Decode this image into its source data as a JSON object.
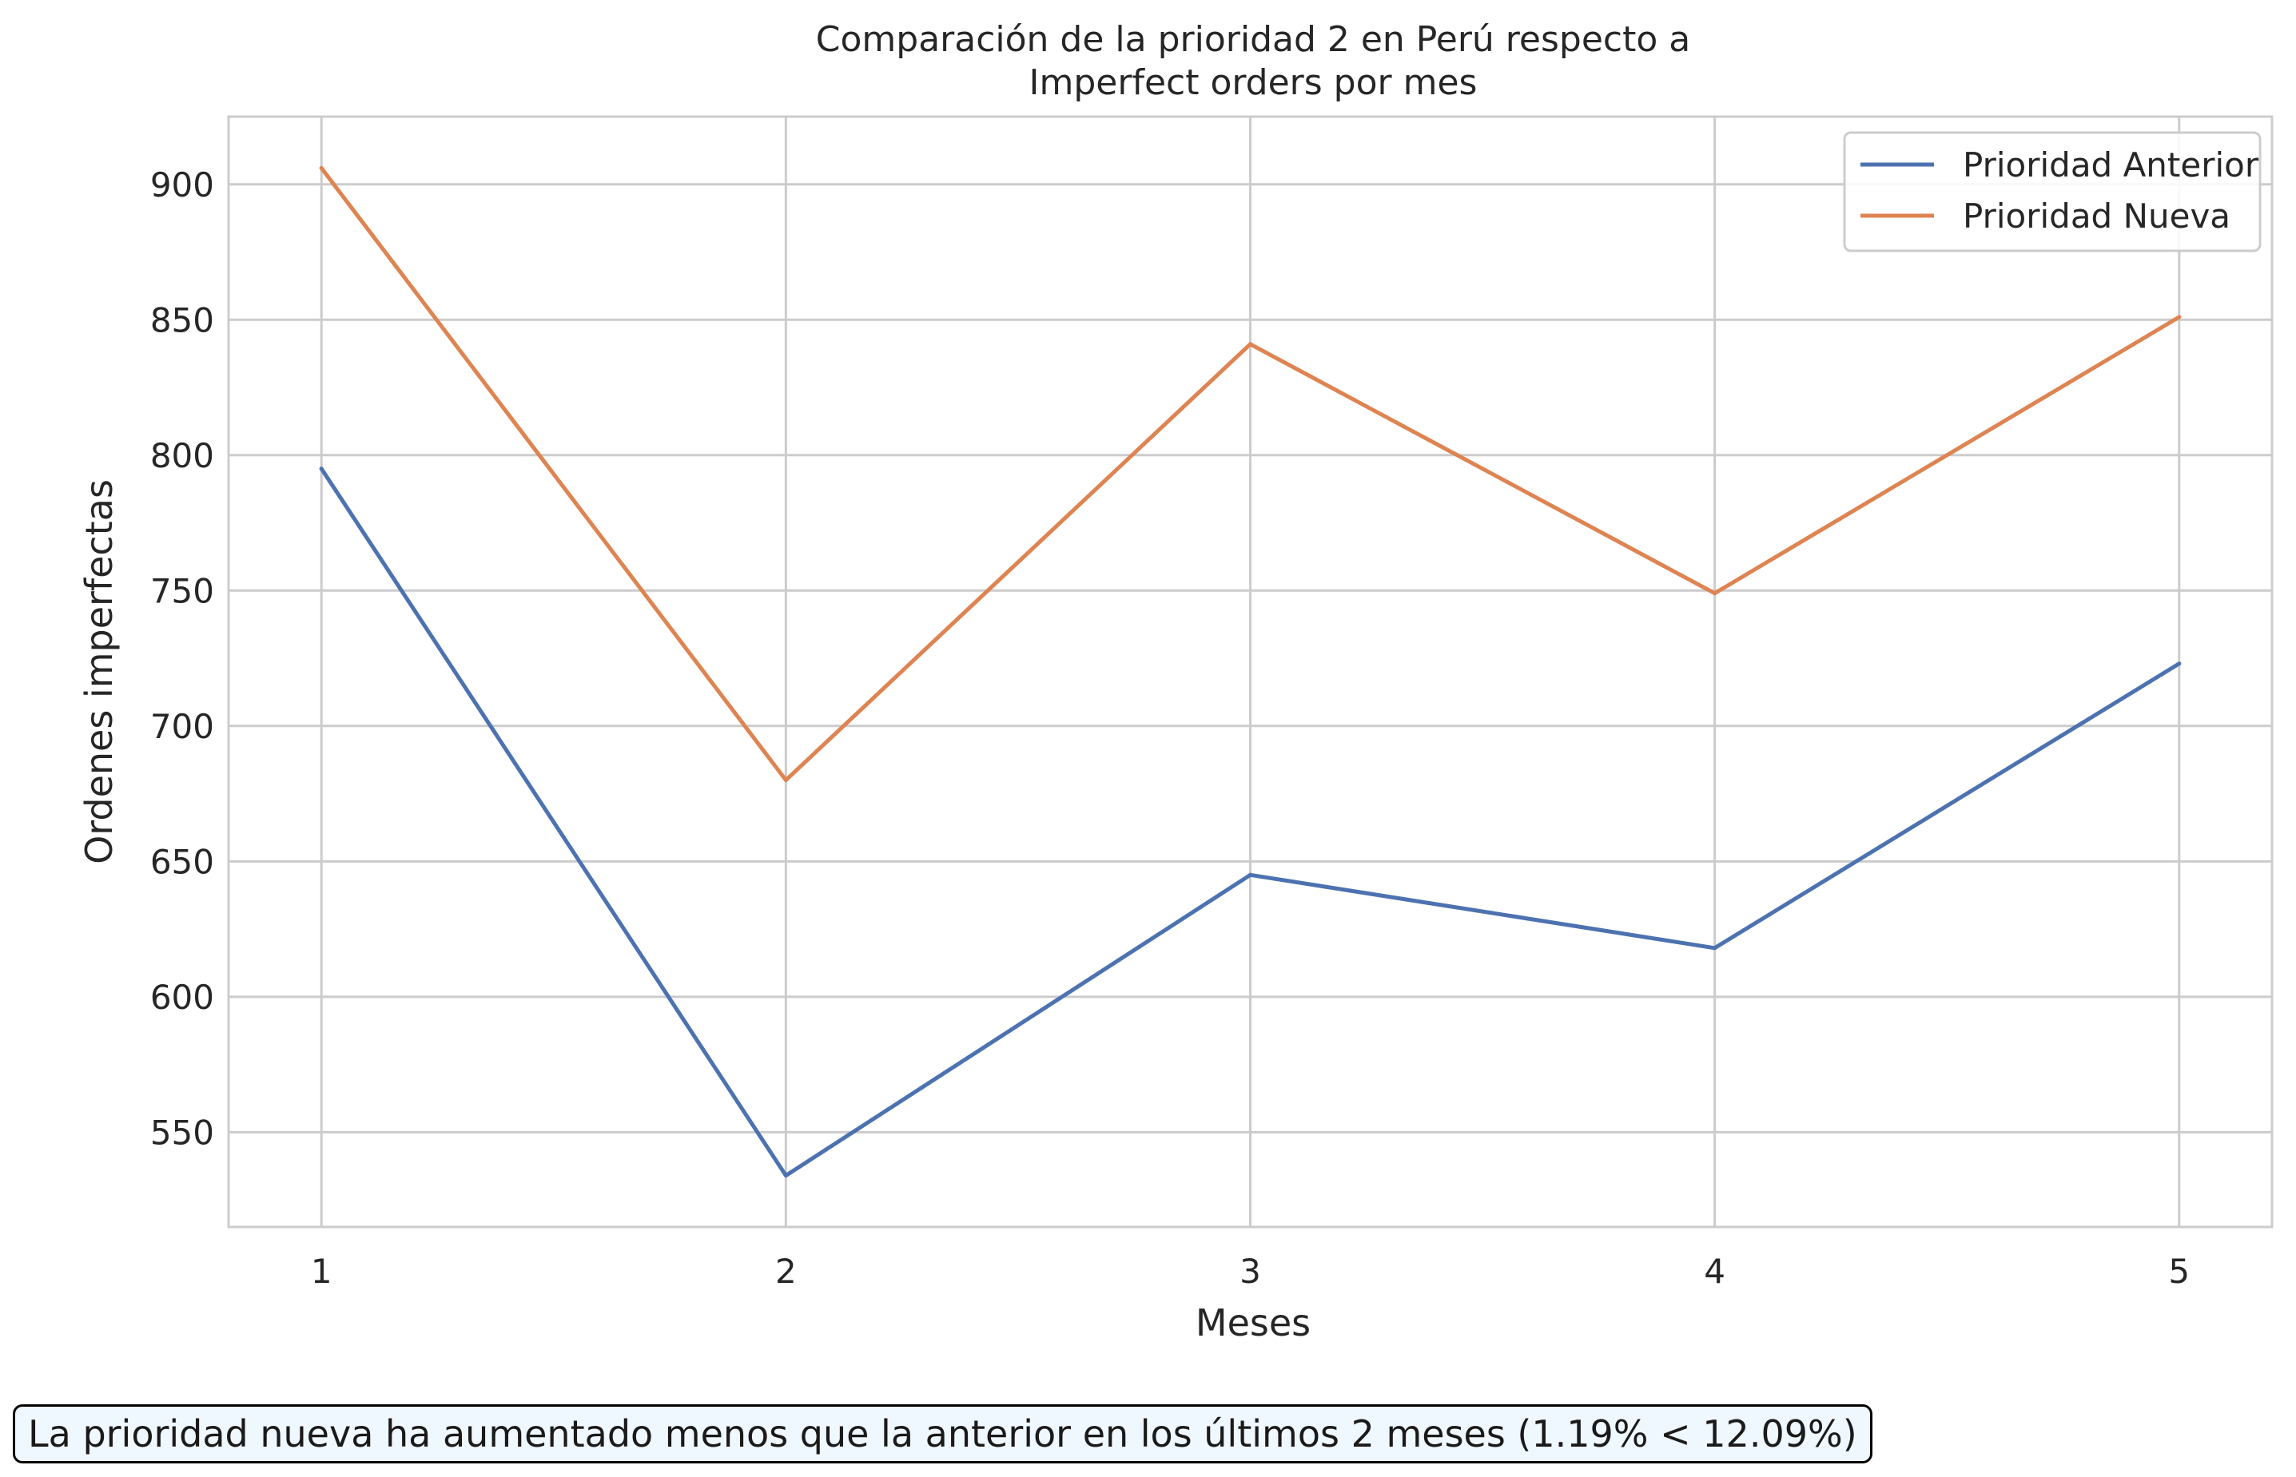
{
  "chart_data": {
    "type": "line",
    "title_lines": [
      "Comparación de la prioridad 2 en Perú respecto a",
      "Imperfect orders por mes"
    ],
    "xlabel": "Meses",
    "ylabel": "Ordenes imperfectas",
    "x": [
      1,
      2,
      3,
      4,
      5
    ],
    "xticks": [
      "1",
      "2",
      "3",
      "4",
      "5"
    ],
    "yticks": [
      550,
      600,
      650,
      700,
      750,
      800,
      850,
      900
    ],
    "xlim": [
      0.8,
      5.2
    ],
    "ylim": [
      515,
      925
    ],
    "grid": true,
    "legend_position": "top-right",
    "series": [
      {
        "name": "Prioridad Anterior",
        "color": "#4c72b0",
        "values": [
          795,
          534,
          645,
          618,
          723
        ]
      },
      {
        "name": "Prioridad Nueva",
        "color": "#dd8452",
        "values": [
          906,
          680,
          841,
          749,
          851
        ]
      }
    ]
  },
  "annotation": {
    "text": "La prioridad nueva ha aumentado menos que la anterior en los últimos 2 meses (1.19% < 12.09%)"
  }
}
